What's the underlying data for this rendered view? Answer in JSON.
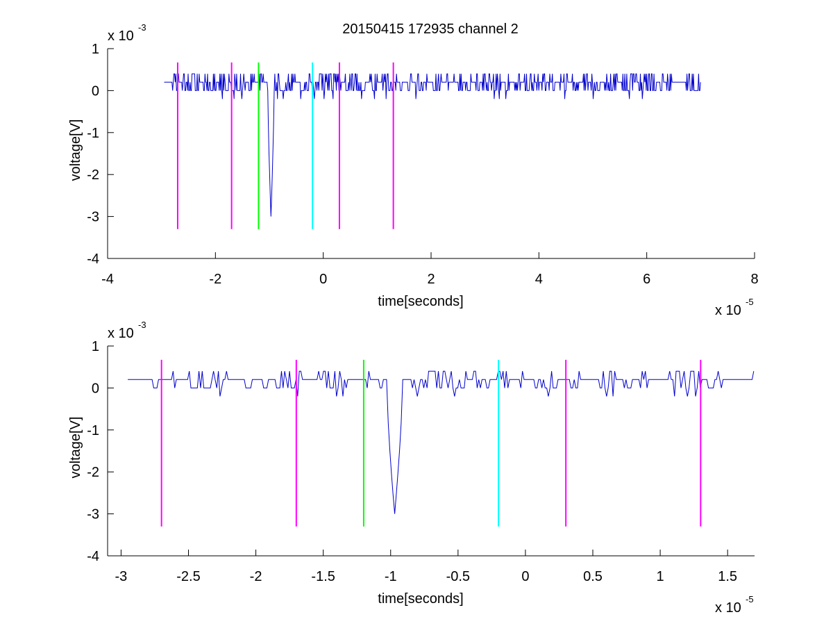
{
  "figure": {
    "title": "20150415 172935 channel 2"
  },
  "chart_data": [
    {
      "type": "line",
      "xlabel": "time[seconds]",
      "ylabel": "voltage[V]",
      "x_multiplier": {
        "base": "x 10",
        "exponent": "-5"
      },
      "y_multiplier": {
        "base": "x 10",
        "exponent": "-3"
      },
      "xlim": [
        -4,
        8
      ],
      "ylim": [
        -4,
        1
      ],
      "xticks": [
        -4,
        -2,
        0,
        2,
        4,
        6,
        8
      ],
      "xtick_labels": [
        "-4",
        "-2",
        "0",
        "2",
        "4",
        "6",
        "8"
      ],
      "yticks": [
        -4,
        -3,
        -2,
        -1,
        0,
        1
      ],
      "ytick_labels": [
        "-4",
        "-3",
        "-2",
        "-1",
        "0",
        "1"
      ],
      "markers": [
        {
          "x": -2.7,
          "color": "#ff00ff"
        },
        {
          "x": -1.7,
          "color": "#ff00ff"
        },
        {
          "x": -1.2,
          "color": "#00ff00"
        },
        {
          "x": -0.2,
          "color": "#00ffff"
        },
        {
          "x": 0.3,
          "color": "#ff00ff"
        },
        {
          "x": 1.3,
          "color": "#ff00ff"
        }
      ],
      "marker_range": [
        -3.3,
        0.67
      ],
      "series": [
        {
          "color": "#0000cc",
          "x_start": -2.95,
          "x_end": 7.0,
          "baseline": 0.2,
          "noise": 0.18,
          "spike": {
            "x": -0.97,
            "min": -3.0,
            "width": 0.06
          }
        }
      ]
    },
    {
      "type": "line",
      "xlabel": "time[seconds]",
      "ylabel": "voltage[V]",
      "x_multiplier": {
        "base": "x 10",
        "exponent": "-5"
      },
      "y_multiplier": {
        "base": "x 10",
        "exponent": "-3"
      },
      "xlim": [
        -3.1,
        1.7
      ],
      "ylim": [
        -4,
        1
      ],
      "xticks": [
        -3,
        -2.5,
        -2,
        -1.5,
        -1,
        -0.5,
        0,
        0.5,
        1,
        1.5
      ],
      "xtick_labels": [
        "-3",
        "-2.5",
        "-2",
        "-1.5",
        "-1",
        "-0.5",
        "0",
        "0.5",
        "1",
        "1.5"
      ],
      "yticks": [
        -4,
        -3,
        -2,
        -1,
        0,
        1
      ],
      "ytick_labels": [
        "-4",
        "-3",
        "-2",
        "-1",
        "0",
        "1"
      ],
      "markers": [
        {
          "x": -2.7,
          "color": "#ff00ff"
        },
        {
          "x": -1.7,
          "color": "#ff00ff"
        },
        {
          "x": -1.2,
          "color": "#00ff00"
        },
        {
          "x": -0.2,
          "color": "#00ffff"
        },
        {
          "x": 0.3,
          "color": "#ff00ff"
        },
        {
          "x": 1.3,
          "color": "#ff00ff"
        }
      ],
      "marker_range": [
        -3.3,
        0.67
      ],
      "series": [
        {
          "color": "#0000cc",
          "x_start": -2.95,
          "x_end": 1.7,
          "baseline": 0.2,
          "noise": 0.18,
          "spike": {
            "x": -0.97,
            "min": -3.0,
            "width": 0.06
          }
        }
      ]
    }
  ]
}
